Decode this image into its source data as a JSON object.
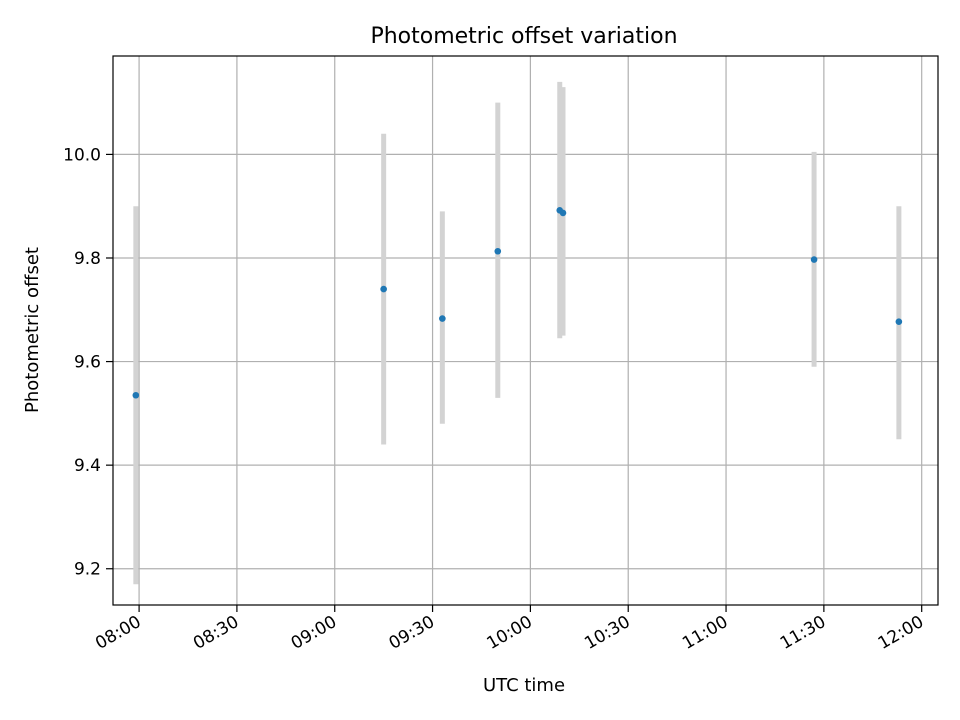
{
  "chart_data": {
    "type": "scatter",
    "title": "Photometric offset variation",
    "xlabel": "UTC time",
    "ylabel": "Photometric offset",
    "x_axis_type": "time",
    "xlim": [
      "07:52",
      "12:05"
    ],
    "ylim": [
      9.13,
      10.19
    ],
    "x_ticks": [
      "08:00",
      "08:30",
      "09:00",
      "09:30",
      "10:00",
      "10:30",
      "11:00",
      "11:30",
      "12:00"
    ],
    "y_ticks": [
      9.2,
      9.4,
      9.6,
      9.8,
      10.0
    ],
    "y_tick_labels": [
      "9.2",
      "9.4",
      "9.6",
      "9.8",
      "10.0"
    ],
    "grid": true,
    "marker_color": "#1f77b4",
    "errorbar_color": "#d3d3d3",
    "points": [
      {
        "x": "07:59",
        "y": 9.535,
        "ylow": 9.17,
        "yhigh": 9.9
      },
      {
        "x": "09:15",
        "y": 9.74,
        "ylow": 9.44,
        "yhigh": 10.04
      },
      {
        "x": "09:33",
        "y": 9.683,
        "ylow": 9.48,
        "yhigh": 9.89
      },
      {
        "x": "09:50",
        "y": 9.813,
        "ylow": 9.53,
        "yhigh": 10.1
      },
      {
        "x": "10:09",
        "y": 9.892,
        "ylow": 9.645,
        "yhigh": 10.14
      },
      {
        "x": "10:10",
        "y": 9.887,
        "ylow": 9.65,
        "yhigh": 10.13
      },
      {
        "x": "11:27",
        "y": 9.797,
        "ylow": 9.59,
        "yhigh": 10.005
      },
      {
        "x": "11:53",
        "y": 9.677,
        "ylow": 9.45,
        "yhigh": 9.9
      }
    ]
  }
}
